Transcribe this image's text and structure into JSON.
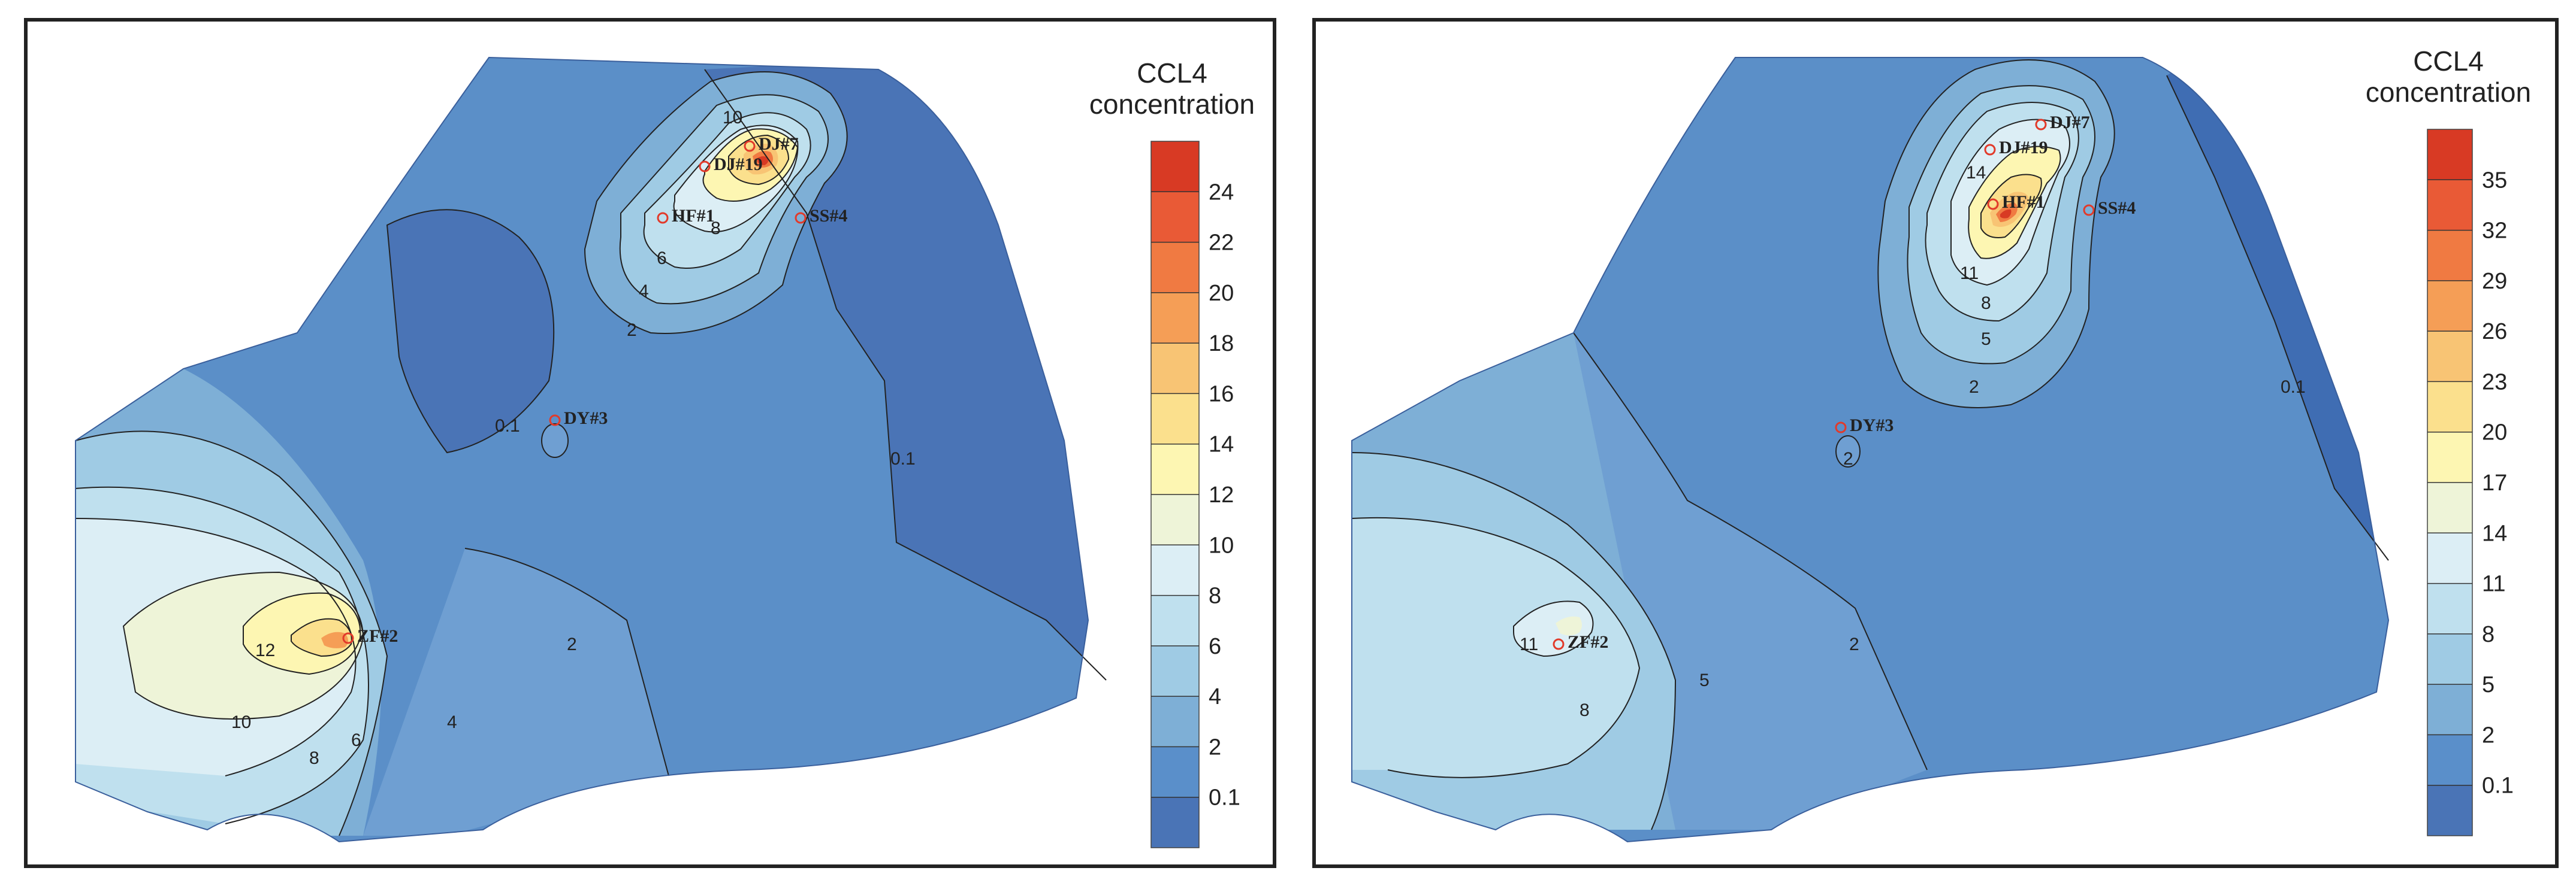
{
  "maps": [
    {
      "id": "left",
      "legend": {
        "title_line1": "CCL4",
        "title_line2": "concentration",
        "ticks": [
          "24",
          "22",
          "20",
          "18",
          "16",
          "14",
          "12",
          "10",
          "8",
          "6",
          "4",
          "2",
          "0.1"
        ],
        "colors": [
          "#d83a24",
          "#e95a36",
          "#f07a42",
          "#f59e56",
          "#f8c474",
          "#fbe08d",
          "#fdf6b2",
          "#eef4d8",
          "#dceef5",
          "#bfe0ee",
          "#9fcbe4",
          "#7eafd6",
          "#5a8fca",
          "#4a74b6"
        ]
      },
      "wells": [
        "DJ#7",
        "DJ#19",
        "HF#1",
        "SS#4",
        "DY#3",
        "ZF#2"
      ],
      "contour_labels": [
        "10",
        "8",
        "6",
        "4",
        "2",
        "0.1",
        "0.1",
        "2",
        "4",
        "6",
        "8",
        "10",
        "12"
      ]
    },
    {
      "id": "right",
      "legend": {
        "title_line1": "CCL4",
        "title_line2": "concentration",
        "ticks": [
          "35",
          "32",
          "29",
          "26",
          "23",
          "20",
          "17",
          "14",
          "11",
          "8",
          "5",
          "2",
          "0.1"
        ],
        "colors": [
          "#d83a24",
          "#e95a36",
          "#f07a42",
          "#f59e56",
          "#f8c474",
          "#fbe08d",
          "#fdf6b2",
          "#eef4d8",
          "#dceef5",
          "#bfe0ee",
          "#9fcbe4",
          "#7eafd6",
          "#5a8fca",
          "#4a74b6"
        ]
      },
      "wells": [
        "DJ#7",
        "DJ#19",
        "HF#1",
        "SS#4",
        "DY#3",
        "ZF#2"
      ],
      "contour_labels": [
        "14",
        "11",
        "8",
        "5",
        "2",
        "0.1",
        "2",
        "2",
        "11",
        "8",
        "5"
      ]
    }
  ],
  "colors": {
    "frame": "#222222",
    "well_marker": "#e23a2a",
    "base_blue": "#5b8fc8",
    "dark_blue": "#3f6db3"
  }
}
